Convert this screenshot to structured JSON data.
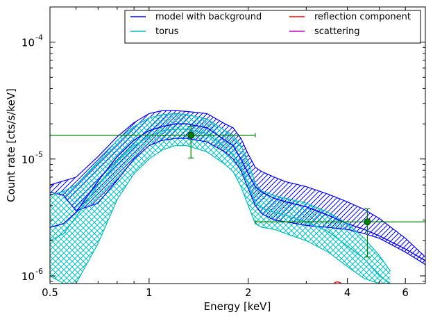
{
  "chart_data": {
    "type": "line",
    "xlabel": "Energy [keV]",
    "ylabel": "Count rate [cts/s/keV]",
    "x_scale": "log",
    "y_scale": "log",
    "xlim": [
      0.5,
      6.9
    ],
    "ylim": [
      8.6e-07,
      0.0002
    ],
    "x_ticks": [
      {
        "value": 0.5,
        "label": "0.5"
      },
      {
        "value": 1,
        "label": "1"
      },
      {
        "value": 2,
        "label": "2"
      },
      {
        "value": 4,
        "label": "4"
      },
      {
        "value": 6,
        "label": "6"
      }
    ],
    "y_ticks": [
      {
        "value": 1e-06,
        "base": "10",
        "exp": "-6"
      },
      {
        "value": 1e-05,
        "base": "10",
        "exp": "-5"
      },
      {
        "value": 0.0001,
        "base": "10",
        "exp": "-4"
      }
    ],
    "legend": {
      "placement": "top-right",
      "entries": [
        {
          "label": "model with background",
          "color": "#0000ff"
        },
        {
          "label": "reflection component",
          "color": "#ff0000"
        },
        {
          "label": "torus",
          "color": "#00bfbf"
        },
        {
          "label": "scattering",
          "color": "#bf00bf"
        }
      ]
    },
    "series": [
      {
        "name": "model with background",
        "color": "#0000ff",
        "band_hatch": "diagonal",
        "x": [
          0.5,
          0.55,
          0.6,
          0.7,
          0.8,
          0.9,
          1.0,
          1.1,
          1.2,
          1.3,
          1.5,
          1.7,
          1.8,
          1.9,
          2.0,
          2.1,
          2.2,
          2.4,
          2.6,
          3.0,
          3.5,
          4.0,
          4.5,
          5.0,
          6.0,
          6.9
        ],
        "center": [
          2.6e-06,
          2.8e-06,
          3.5e-06,
          6.5e-06,
          1.05e-05,
          1.45e-05,
          1.75e-05,
          1.9e-05,
          2e-05,
          2e-05,
          1.85e-05,
          1.45e-05,
          1.3e-05,
          1e-05,
          7.5e-06,
          5.8e-06,
          5.2e-06,
          4.6e-06,
          4.3e-06,
          3.9e-06,
          3.3e-06,
          2.8e-06,
          2.5e-06,
          2.2e-06,
          1.7e-06,
          1.35e-06
        ],
        "upper": [
          6e-06,
          6.5e-06,
          7e-06,
          1.05e-05,
          1.55e-05,
          2.05e-05,
          2.45e-05,
          2.6e-05,
          2.6e-05,
          2.55e-05,
          2.45e-05,
          2e-05,
          1.85e-05,
          1.5e-05,
          1.1e-05,
          8.5e-06,
          7.8e-06,
          7e-06,
          6.4e-06,
          5.8e-06,
          5e-06,
          4.3e-06,
          3.7e-06,
          3.1e-06,
          2.1e-06,
          1.45e-06
        ],
        "lower": [
          5.2e-06,
          4.9e-06,
          3.6e-06,
          4.2e-06,
          6.6e-06,
          1e-05,
          1.3e-05,
          1.45e-05,
          1.5e-05,
          1.5e-05,
          1.4e-05,
          1.15e-05,
          1e-05,
          8e-06,
          5.6e-06,
          4e-06,
          3.4e-06,
          3e-06,
          2.9e-06,
          2.7e-06,
          2.6e-06,
          2.5e-06,
          2.3e-06,
          2.1e-06,
          1.6e-06,
          1.25e-06
        ]
      },
      {
        "name": "torus",
        "color": "#00bfbf",
        "band_hatch": "crosshatch",
        "x": [
          0.5,
          0.55,
          0.6,
          0.7,
          0.8,
          0.9,
          1.0,
          1.1,
          1.2,
          1.3,
          1.5,
          1.7,
          1.8,
          1.9,
          2.0,
          2.1,
          2.2,
          2.4,
          2.6,
          3.0,
          3.5,
          4.0,
          4.5,
          5.0,
          5.4
        ],
        "center": [
          2e-06,
          2.3e-06,
          3.2e-06,
          6e-06,
          9.5e-06,
          1.3e-05,
          1.55e-05,
          1.75e-05,
          1.8e-05,
          1.8e-05,
          1.65e-05,
          1.25e-05,
          1.1e-05,
          8.5e-06,
          6.2e-06,
          4.2e-06,
          3.8e-06,
          3.5e-06,
          3.3e-06,
          2.9e-06,
          2.4e-06,
          1.8e-06,
          1.4e-06,
          1e-06,
          8.6e-07
        ],
        "upper": [
          4.9e-06,
          5.3e-06,
          6e-06,
          9.5e-06,
          1.45e-05,
          1.9e-05,
          2.25e-05,
          2.4e-05,
          2.45e-05,
          2.4e-05,
          2.2e-05,
          1.75e-05,
          1.6e-05,
          1.3e-05,
          9.5e-06,
          6.2e-06,
          5.3e-06,
          4.9e-06,
          4.6e-06,
          4.2e-06,
          3.5e-06,
          2.8e-06,
          2.1e-06,
          1.5e-06,
          1.1e-06
        ],
        "lower": [
          1e-06,
          8.6e-07,
          8.6e-07,
          1.9e-06,
          4.5e-06,
          7.5e-06,
          1e-05,
          1.2e-05,
          1.3e-05,
          1.3e-05,
          1.15e-05,
          9e-06,
          7.8e-06,
          5.8e-06,
          4e-06,
          2.8e-06,
          2.6e-06,
          2.5e-06,
          2.3e-06,
          2e-06,
          1.6e-06,
          1.2e-06,
          9.5e-07,
          8.6e-07,
          8.6e-07
        ]
      },
      {
        "name": "reflection component",
        "color": "#ff0000",
        "x": [
          3.65,
          3.72,
          3.78,
          3.84
        ],
        "y": [
          8.7e-07,
          8.9e-07,
          8.8e-07,
          8.6e-07
        ]
      }
    ],
    "data_points": [
      {
        "x": 1.34,
        "y": 1.6e-05,
        "xerr": [
          0.5,
          2.1
        ],
        "yerr": [
          1.02e-05,
          1.9e-05
        ]
      },
      {
        "x": 4.6,
        "y": 2.9e-06,
        "xerr": [
          2.1,
          6.9
        ],
        "yerr": [
          1.45e-06,
          3.75e-06
        ]
      }
    ],
    "data_color": "#008000"
  }
}
